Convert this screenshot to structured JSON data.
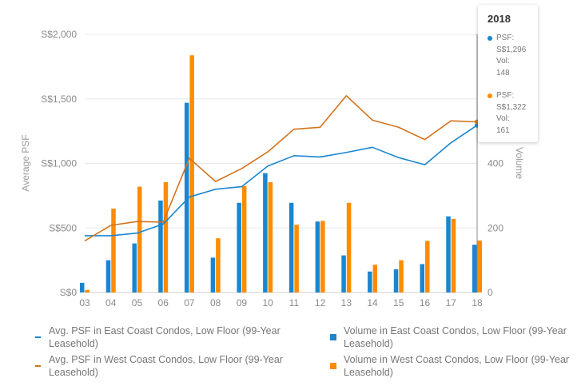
{
  "chart_data": {
    "type": "bar+line",
    "title": "",
    "categories": [
      "03",
      "04",
      "05",
      "06",
      "07",
      "08",
      "09",
      "10",
      "11",
      "12",
      "13",
      "14",
      "15",
      "16",
      "17",
      "18"
    ],
    "y_left": {
      "label": "Average PSF",
      "ticks": [
        "S$0",
        "S$500",
        "S$1,000",
        "S$1,500",
        "S$2,000"
      ],
      "range": [
        0,
        2000
      ]
    },
    "y_right": {
      "label": "Volume",
      "ticks": [
        "0",
        "200",
        "400"
      ],
      "range": [
        0,
        800
      ]
    },
    "series": [
      {
        "name": "Avg. PSF in East Coast Condos, Low Floor (99-Year Leasehold)",
        "kind": "line",
        "axis": "left",
        "color": "#1a86d0",
        "values": [
          440,
          440,
          460,
          530,
          740,
          800,
          820,
          980,
          1060,
          1050,
          1085,
          1125,
          1045,
          990,
          1160,
          1296
        ]
      },
      {
        "name": "Avg. PSF in West Coast Condos, Low Floor (99-Year Leasehold)",
        "kind": "line",
        "axis": "left",
        "color": "#d4731d",
        "values": [
          400,
          520,
          550,
          545,
          1040,
          860,
          960,
          1090,
          1265,
          1280,
          1525,
          1335,
          1280,
          1185,
          1330,
          1322
        ]
      },
      {
        "name": "Volume in East Coast Condos, Low Floor (99-Year Leasehold)",
        "kind": "bar",
        "axis": "right",
        "color": "#1a86d0",
        "values": [
          30,
          100,
          152,
          285,
          588,
          108,
          278,
          370,
          278,
          220,
          115,
          65,
          72,
          88,
          236,
          148
        ]
      },
      {
        "name": "Volume in West Coast Condos, Low Floor (99-Year Leasehold)",
        "kind": "bar",
        "axis": "right",
        "color": "#ff8c00",
        "values": [
          8,
          260,
          328,
          342,
          735,
          168,
          330,
          342,
          210,
          222,
          278,
          86,
          100,
          160,
          228,
          161
        ]
      }
    ],
    "legend_position": "bottom",
    "grid": "horizontal",
    "crosshair_category": "18"
  },
  "tooltip": {
    "title": "2018",
    "entries": [
      {
        "color": "#1a86d0",
        "psf_label": "PSF:",
        "psf_value": "S$1,296",
        "vol_label": "Vol:",
        "vol_value": "148"
      },
      {
        "color": "#ff8c00",
        "psf_label": "PSF:",
        "psf_value": "S$1,322",
        "vol_label": "Vol:",
        "vol_value": "161"
      }
    ]
  }
}
